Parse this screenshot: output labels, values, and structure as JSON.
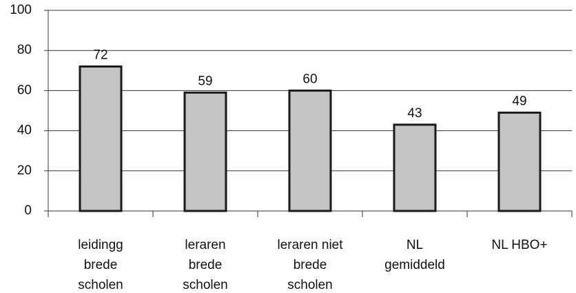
{
  "chart_data": {
    "type": "bar",
    "categories": [
      [
        "leidingg",
        "brede",
        "scholen"
      ],
      [
        "leraren",
        "brede",
        "scholen"
      ],
      [
        "leraren niet",
        "brede",
        "scholen"
      ],
      [
        "NL",
        "gemiddeld"
      ],
      [
        "NL HBO+"
      ]
    ],
    "values": [
      72,
      59,
      60,
      43,
      49
    ],
    "color": "#c4c4c4",
    "ylim": [
      0,
      100
    ],
    "yticks": [
      0,
      20,
      40,
      60,
      80,
      100
    ],
    "grid": true
  }
}
